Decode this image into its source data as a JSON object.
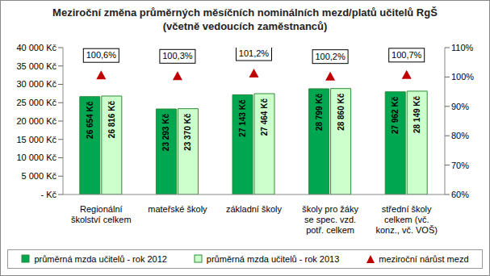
{
  "chart_data": {
    "type": "bar",
    "title": "Meziroční změna průměrných měsíčních nominálních mezd/platů učitelů RgŠ",
    "subtitle": "(včetně vedoucích zaměstnanců)",
    "categories": [
      "Regionální školství celkem",
      "mateřské školy",
      "základní školy",
      "školy pro žáky se spec. vzd. potř. celkem",
      "střední školy celkem (vč. konz., vč. VOŠ)"
    ],
    "series": [
      {
        "name": "průměrná mzda učitelů - rok 2012",
        "color": "#00a650",
        "values": [
          26654,
          23293,
          27143,
          28799,
          27962
        ],
        "value_labels": [
          "26 654 Kč",
          "23 293 Kč",
          "27 143 Kč",
          "28 799 Kč",
          "27 962 Kč"
        ]
      },
      {
        "name": "průměrná mzda učitelů - rok 2013",
        "color": "#ccffcc",
        "values": [
          26816,
          23370,
          27464,
          28860,
          28149
        ],
        "value_labels": [
          "26 816 Kč",
          "23 370 Kč",
          "27 464 Kč",
          "28 860 Kč",
          "28 149 Kč"
        ]
      },
      {
        "name": "meziroční nárůst mezd",
        "type": "scatter",
        "axis": "y2",
        "color": "#c00000",
        "marker": "triangle",
        "values": [
          100.6,
          100.3,
          101.2,
          100.2,
          100.7
        ],
        "value_labels": [
          "100,6%",
          "100,3%",
          "101,2%",
          "100,2%",
          "100,7%"
        ]
      }
    ],
    "ylim": [
      0,
      40000
    ],
    "yticks": [
      {
        "value": 0,
        "label": "-   Kč"
      },
      {
        "value": 5000,
        "label": "5 000 Kč"
      },
      {
        "value": 10000,
        "label": "10 000 Kč"
      },
      {
        "value": 15000,
        "label": "15 000 Kč"
      },
      {
        "value": 20000,
        "label": "20 000 Kč"
      },
      {
        "value": 25000,
        "label": "25 000 Kč"
      },
      {
        "value": 30000,
        "label": "30 000 Kč"
      },
      {
        "value": 35000,
        "label": "35 000 Kč"
      },
      {
        "value": 40000,
        "label": "40 000 Kč"
      }
    ],
    "y2lim": [
      60,
      110
    ],
    "y2ticks": [
      {
        "value": 60,
        "label": "60%"
      },
      {
        "value": 70,
        "label": "70%"
      },
      {
        "value": 80,
        "label": "80%"
      },
      {
        "value": 90,
        "label": "90%"
      },
      {
        "value": 100,
        "label": "100%"
      },
      {
        "value": 110,
        "label": "110%"
      }
    ],
    "data_labels": true,
    "grid": false,
    "legend": "bottom"
  }
}
